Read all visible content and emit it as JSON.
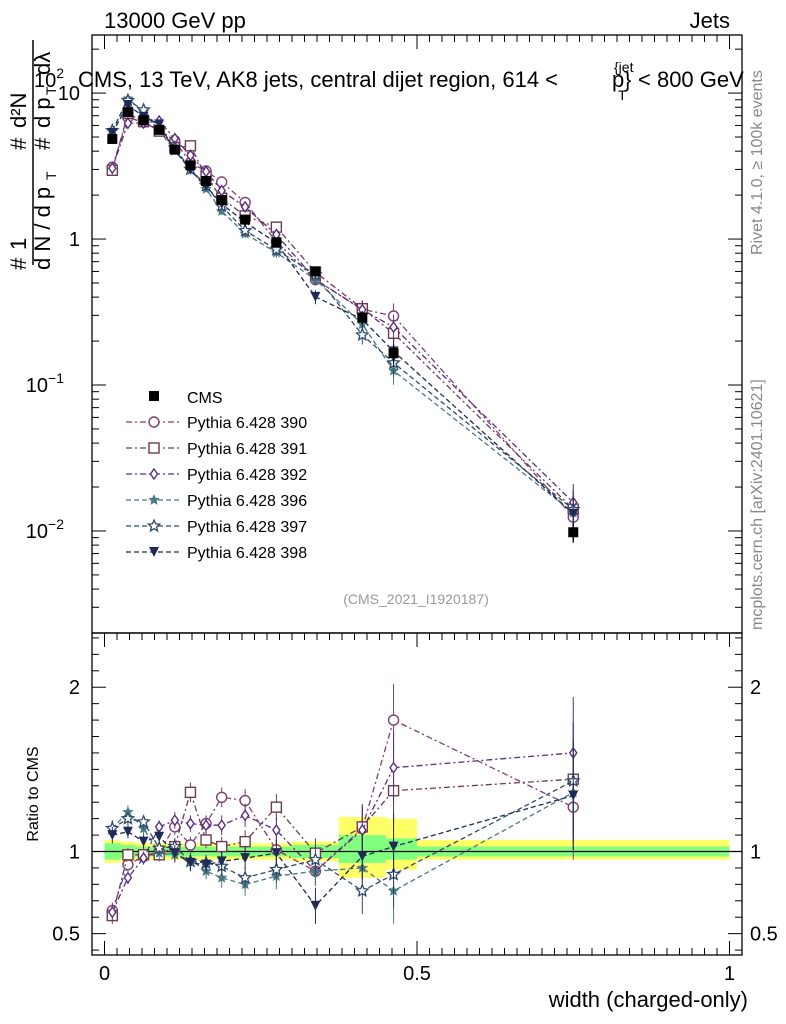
{
  "header": {
    "beam": "13000 GeV pp",
    "process": "Jets",
    "title": "CMS, 13 TeV, AK8 jets, central dijet region, 614 < p_T^{jet} < 800 GeV",
    "title_prefix": "CMS, 13 TeV, AK8 jets, central dijet region, 614 <",
    "title_p": "p",
    "title_sub": "T",
    "title_sup": "{jet",
    "title_close": "}",
    "title_suffix": "< 800 GeV",
    "side_rivet": "Rivet 4.1.0, ≥ 100k events",
    "side_mcplots": "mcplots.cern.ch [arXiv:2401.10621]",
    "analysis_id": "(CMS_2021_I1920187)"
  },
  "chart_data": {
    "type": "line",
    "title": "CMS, 13 TeV, AK8 jets, central dijet region, 614 < p_T^{jet} < 800 GeV",
    "xlabel": "width (charged-only)",
    "ylabel": "1/dN/dp_T  d²N/dp_T dλ",
    "ratio_ylabel": "Ratio to CMS",
    "xlim": [
      -0.02,
      1.02
    ],
    "ylim": [
      0.002,
      25
    ],
    "yscale": "log",
    "ratio_ylim": [
      0.37,
      2.33
    ],
    "x_ticks": [
      0,
      0.5,
      1
    ],
    "x_tick_labels": [
      "0",
      "0.5",
      "1"
    ],
    "y_tick_labels": [
      {
        "v": 0.01,
        "base": "10",
        "exp": "−2"
      },
      {
        "v": 0.1,
        "base": "10",
        "exp": "−1"
      },
      {
        "v": 1,
        "text": "1"
      },
      {
        "v": 10,
        "text": "10"
      },
      {
        "v": 100,
        "base": "10",
        "exp": "2"
      }
    ],
    "ratio_tick_labels": [
      {
        "v": 0.5,
        "text": "0.5"
      },
      {
        "v": 1,
        "text": "1"
      },
      {
        "v": 2,
        "text": "2"
      }
    ],
    "x": [
      0.0125,
      0.0375,
      0.0625,
      0.0875,
      0.1125,
      0.1375,
      0.1625,
      0.1875,
      0.225,
      0.275,
      0.3375,
      0.4125,
      0.4625,
      0.75
    ],
    "data": {
      "name": "CMS",
      "values": [
        4.85,
        7.4,
        6.5,
        5.6,
        4.1,
        3.2,
        2.5,
        1.85,
        1.36,
        0.95,
        0.6,
        0.29,
        0.165,
        0.0098
      ],
      "errors": [
        0.3,
        0.35,
        0.3,
        0.25,
        0.2,
        0.17,
        0.14,
        0.11,
        0.09,
        0.07,
        0.05,
        0.03,
        0.025,
        0.0015
      ]
    },
    "ratio_band_stat": [
      {
        "x0": 0.0,
        "x1": 0.025,
        "lo": 0.95,
        "hi": 1.05
      },
      {
        "x0": 0.025,
        "x1": 0.05,
        "lo": 0.96,
        "hi": 1.04
      },
      {
        "x0": 0.05,
        "x1": 0.15,
        "lo": 0.97,
        "hi": 1.03
      },
      {
        "x0": 0.15,
        "x1": 0.2,
        "lo": 0.97,
        "hi": 1.03
      },
      {
        "x0": 0.2,
        "x1": 0.25,
        "lo": 0.97,
        "hi": 1.03
      },
      {
        "x0": 0.25,
        "x1": 0.3,
        "lo": 0.97,
        "hi": 1.03
      },
      {
        "x0": 0.3,
        "x1": 0.375,
        "lo": 0.96,
        "hi": 1.04
      },
      {
        "x0": 0.375,
        "x1": 0.45,
        "lo": 0.93,
        "hi": 1.1
      },
      {
        "x0": 0.45,
        "x1": 0.5,
        "lo": 0.95,
        "hi": 1.08
      },
      {
        "x0": 0.5,
        "x1": 1.0,
        "lo": 0.97,
        "hi": 1.03
      }
    ],
    "ratio_band_total": [
      {
        "x0": 0.0,
        "x1": 0.025,
        "lo": 0.93,
        "hi": 1.07
      },
      {
        "x0": 0.025,
        "x1": 0.05,
        "lo": 0.94,
        "hi": 1.06
      },
      {
        "x0": 0.05,
        "x1": 0.15,
        "lo": 0.95,
        "hi": 1.05
      },
      {
        "x0": 0.15,
        "x1": 0.2,
        "lo": 0.95,
        "hi": 1.05
      },
      {
        "x0": 0.2,
        "x1": 0.25,
        "lo": 0.95,
        "hi": 1.05
      },
      {
        "x0": 0.25,
        "x1": 0.3,
        "lo": 0.95,
        "hi": 1.05
      },
      {
        "x0": 0.3,
        "x1": 0.375,
        "lo": 0.94,
        "hi": 1.06
      },
      {
        "x0": 0.375,
        "x1": 0.45,
        "lo": 0.84,
        "hi": 1.21
      },
      {
        "x0": 0.45,
        "x1": 0.5,
        "lo": 0.89,
        "hi": 1.2
      },
      {
        "x0": 0.5,
        "x1": 1.0,
        "lo": 0.95,
        "hi": 1.07
      }
    ],
    "series": [
      {
        "name": "Pythia 6.428 390",
        "color": "#7f3f6e",
        "marker": "circle",
        "dash": "6,3,2,3",
        "ratio": [
          0.64,
          0.92,
          0.97,
          1.0,
          1.15,
          1.04,
          1.17,
          1.33,
          1.31,
          1.01,
          0.88,
          1.14,
          1.8,
          1.27
        ],
        "ratio_err": [
          0.05,
          0.04,
          0.04,
          0.04,
          0.05,
          0.05,
          0.05,
          0.06,
          0.07,
          0.08,
          0.09,
          0.14,
          0.22,
          0.32
        ]
      },
      {
        "name": "Pythia 6.428 391",
        "color": "#6e3b4e",
        "marker": "square",
        "dash": "6,3,2,3",
        "ratio": [
          0.61,
          0.98,
          0.98,
          0.98,
          1.03,
          1.36,
          1.07,
          1.03,
          1.06,
          1.27,
          0.99,
          1.15,
          1.37,
          1.44
        ],
        "ratio_err": [
          0.05,
          0.04,
          0.04,
          0.04,
          0.05,
          0.06,
          0.05,
          0.06,
          0.07,
          0.08,
          0.09,
          0.14,
          0.2,
          0.35
        ]
      },
      {
        "name": "Pythia 6.428 392",
        "color": "#5a2d82",
        "marker": "diamond",
        "dash": "6,3,2,3",
        "ratio": [
          0.63,
          0.84,
          0.96,
          1.15,
          1.19,
          1.17,
          1.16,
          1.16,
          1.22,
          1.13,
          0.88,
          1.13,
          1.51,
          1.6
        ],
        "ratio_err": [
          0.05,
          0.04,
          0.04,
          0.04,
          0.05,
          0.05,
          0.05,
          0.06,
          0.07,
          0.08,
          0.09,
          0.14,
          0.22,
          0.34
        ]
      },
      {
        "name": "Pythia 6.428 396",
        "color": "#4a7a82",
        "marker": "star",
        "dash": "5,3",
        "ratio": [
          1.14,
          1.24,
          1.14,
          0.99,
          0.98,
          0.95,
          0.88,
          0.84,
          0.8,
          0.85,
          0.88,
          0.9,
          0.76,
          1.36
        ],
        "ratio_err": [
          0.05,
          0.04,
          0.04,
          0.04,
          0.05,
          0.05,
          0.05,
          0.06,
          0.07,
          0.08,
          0.09,
          0.14,
          0.2,
          0.33
        ]
      },
      {
        "name": "Pythia 6.428 397",
        "color": "#2f4a6b",
        "marker": "star-open",
        "dash": "5,3",
        "ratio": [
          1.14,
          1.2,
          1.18,
          1.02,
          1.03,
          0.94,
          0.93,
          0.91,
          0.84,
          0.89,
          0.95,
          0.76,
          0.86,
          1.43
        ],
        "ratio_err": [
          0.05,
          0.04,
          0.04,
          0.04,
          0.05,
          0.05,
          0.05,
          0.06,
          0.07,
          0.08,
          0.09,
          0.14,
          0.2,
          0.35
        ]
      },
      {
        "name": "Pythia 6.428 398",
        "color": "#1f2a55",
        "marker": "triangle-down",
        "dash": "5,3",
        "ratio": [
          1.1,
          1.12,
          1.06,
          1.09,
          0.99,
          0.93,
          0.92,
          0.94,
          0.96,
          0.99,
          0.67,
          0.97,
          1.03,
          1.34
        ],
        "ratio_err": [
          0.05,
          0.04,
          0.04,
          0.04,
          0.05,
          0.05,
          0.05,
          0.06,
          0.07,
          0.08,
          0.11,
          0.14,
          0.2,
          0.33
        ]
      }
    ]
  }
}
